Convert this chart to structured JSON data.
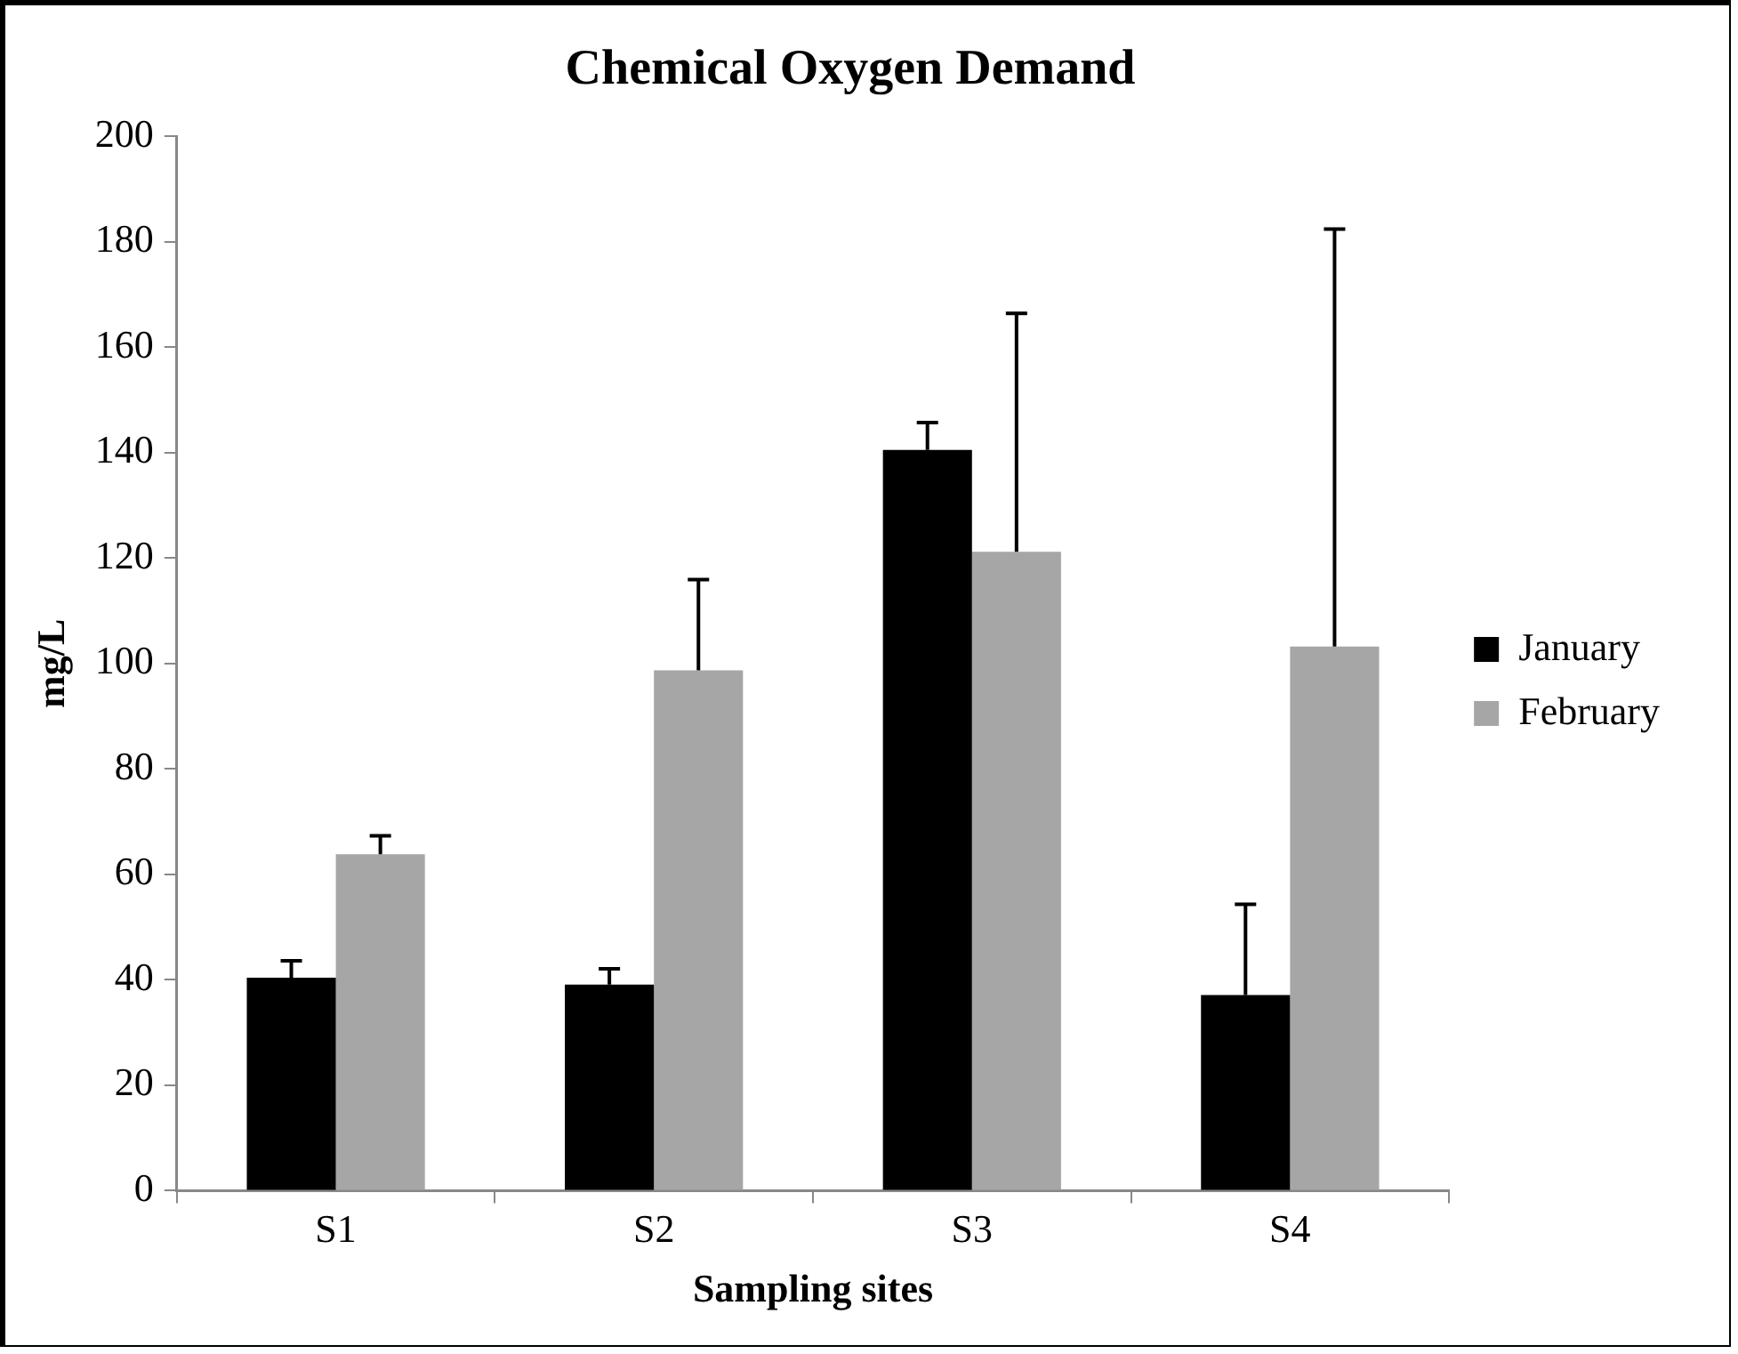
{
  "chart_data": {
    "type": "bar",
    "title": "Chemical Oxygen Demand",
    "xlabel": "Sampling sites",
    "ylabel": "mg/L",
    "categories": [
      "S1",
      "S2",
      "S3",
      "S4"
    ],
    "series": [
      {
        "name": "January",
        "color": "#000000",
        "values": [
          40.4,
          39.1,
          140.5,
          37.1
        ],
        "errors": [
          3.2,
          3,
          5.2,
          17.2
        ]
      },
      {
        "name": "February",
        "color": "#a6a6a6",
        "values": [
          63.8,
          98.7,
          121.2,
          103.2
        ],
        "errors": [
          3.5,
          17.2,
          45.2,
          79.2
        ]
      }
    ],
    "ylim": [
      0,
      200
    ],
    "yticks": [
      0,
      20,
      40,
      60,
      80,
      100,
      120,
      140,
      160,
      180,
      200
    ],
    "grid": false,
    "legend": "right"
  }
}
